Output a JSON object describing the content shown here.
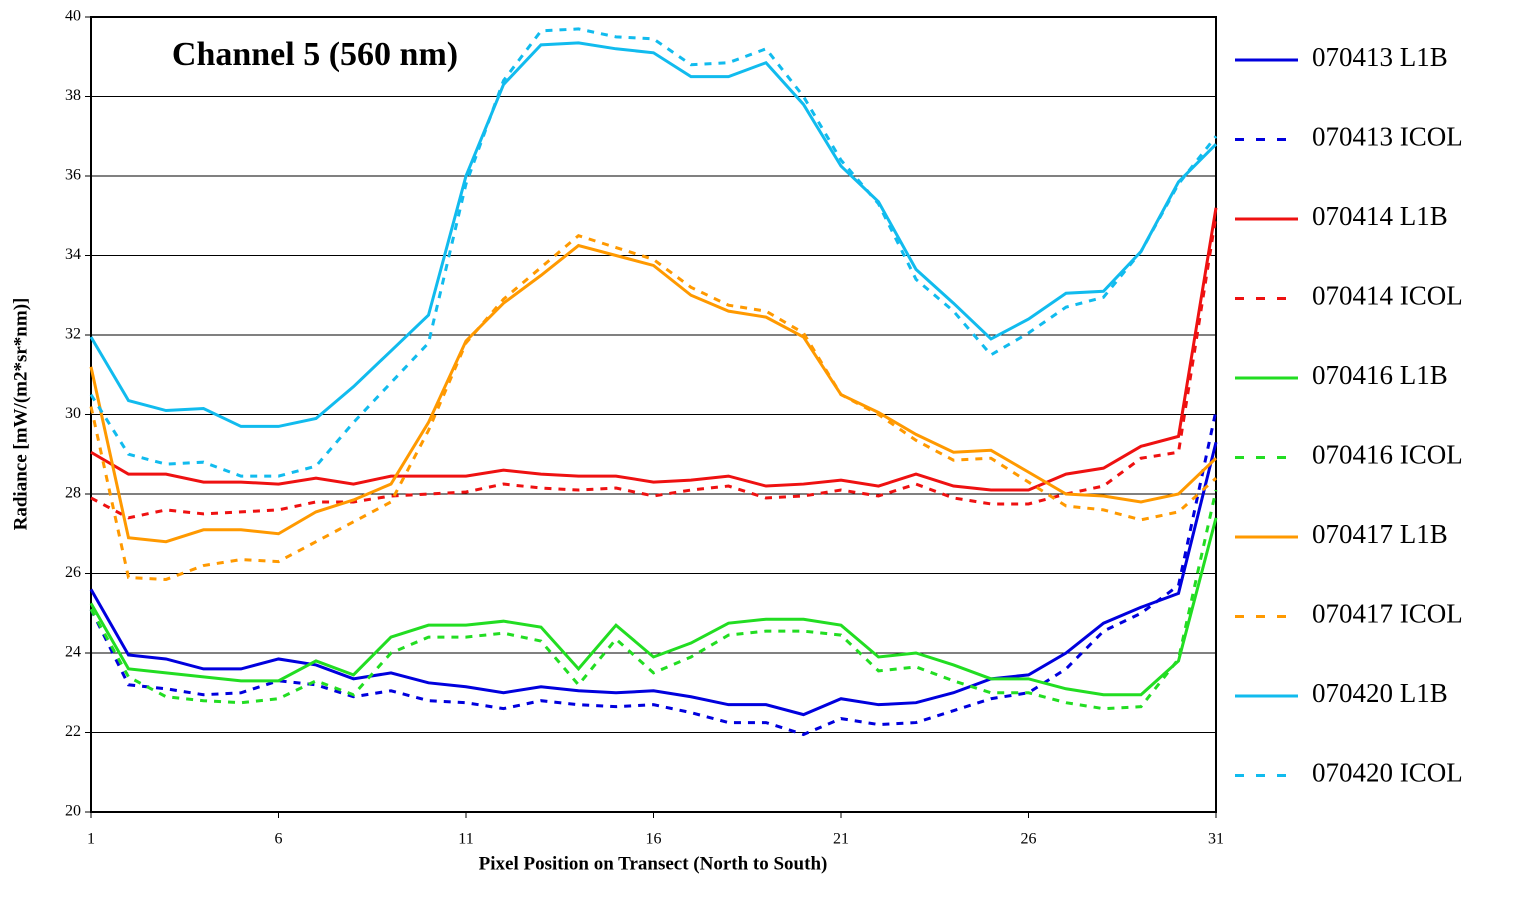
{
  "chart_data": {
    "type": "line",
    "title": "Channel 5 (560 nm)",
    "x_label": "Pixel Position on Transect (North to South)",
    "y_label": "Radiance [mW/(m2*sr*nm)]",
    "x": [
      1,
      2,
      3,
      4,
      5,
      6,
      7,
      8,
      9,
      10,
      11,
      12,
      13,
      14,
      15,
      16,
      17,
      18,
      19,
      20,
      21,
      22,
      23,
      24,
      25,
      26,
      27,
      28,
      29,
      30,
      31
    ],
    "xlim": [
      1,
      31
    ],
    "xticks": [
      1,
      6,
      11,
      16,
      21,
      26,
      31
    ],
    "ylim": [
      20,
      40
    ],
    "yticks": [
      20,
      22,
      24,
      26,
      28,
      30,
      32,
      34,
      36,
      38,
      40
    ],
    "grid": true,
    "legend": "right",
    "series": [
      {
        "name": "070413 L1B",
        "color": "#0000dd",
        "style": "solid",
        "values": [
          25.6,
          23.95,
          23.85,
          23.6,
          23.6,
          23.85,
          23.7,
          23.35,
          23.5,
          23.25,
          23.15,
          23.0,
          23.15,
          23.05,
          23.0,
          23.05,
          22.9,
          22.7,
          22.7,
          22.45,
          22.85,
          22.7,
          22.75,
          23.0,
          23.35,
          23.45,
          24.0,
          24.75,
          25.15,
          25.5,
          29.3
        ]
      },
      {
        "name": "070413 ICOL",
        "color": "#0000dd",
        "style": "dashed",
        "values": [
          25.1,
          23.2,
          23.1,
          22.95,
          23.0,
          23.3,
          23.2,
          22.9,
          23.05,
          22.8,
          22.75,
          22.6,
          22.8,
          22.7,
          22.65,
          22.7,
          22.5,
          22.25,
          22.25,
          21.95,
          22.35,
          22.2,
          22.25,
          22.55,
          22.85,
          23.0,
          23.6,
          24.55,
          25.0,
          25.7,
          30.1
        ]
      },
      {
        "name": "070414 L1B",
        "color": "#ee1111",
        "style": "solid",
        "values": [
          29.05,
          28.5,
          28.5,
          28.3,
          28.3,
          28.25,
          28.4,
          28.25,
          28.45,
          28.45,
          28.45,
          28.6,
          28.5,
          28.45,
          28.45,
          28.3,
          28.35,
          28.45,
          28.2,
          28.25,
          28.35,
          28.2,
          28.5,
          28.2,
          28.1,
          28.1,
          28.5,
          28.65,
          29.2,
          29.45,
          35.2
        ]
      },
      {
        "name": "070414 ICOL",
        "color": "#ee1111",
        "style": "dashed",
        "values": [
          27.9,
          27.4,
          27.6,
          27.5,
          27.55,
          27.6,
          27.8,
          27.8,
          27.95,
          28.0,
          28.05,
          28.25,
          28.15,
          28.1,
          28.15,
          27.95,
          28.1,
          28.2,
          27.9,
          27.95,
          28.1,
          27.95,
          28.25,
          27.9,
          27.75,
          27.75,
          28.0,
          28.2,
          28.9,
          29.05,
          35.0
        ]
      },
      {
        "name": "070416 L1B",
        "color": "#22dd22",
        "style": "solid",
        "values": [
          25.25,
          23.6,
          23.5,
          23.4,
          23.3,
          23.3,
          23.8,
          23.45,
          24.4,
          24.7,
          24.7,
          24.8,
          24.65,
          23.6,
          24.7,
          23.9,
          24.25,
          24.75,
          24.85,
          24.85,
          24.7,
          23.9,
          24.0,
          23.7,
          23.35,
          23.35,
          23.1,
          22.95,
          22.95,
          23.8,
          27.4
        ]
      },
      {
        "name": "070416 ICOL",
        "color": "#22dd22",
        "style": "dashed",
        "values": [
          25.1,
          23.4,
          22.9,
          22.8,
          22.75,
          22.85,
          23.3,
          22.95,
          24.0,
          24.4,
          24.4,
          24.5,
          24.3,
          23.2,
          24.35,
          23.5,
          23.9,
          24.45,
          24.55,
          24.55,
          24.45,
          23.55,
          23.65,
          23.3,
          23.0,
          23.0,
          22.75,
          22.6,
          22.65,
          23.85,
          28.1
        ]
      },
      {
        "name": "070417 L1B",
        "color": "#ff9900",
        "style": "solid",
        "values": [
          31.2,
          26.9,
          26.8,
          27.1,
          27.1,
          27.0,
          27.55,
          27.85,
          28.25,
          29.8,
          31.85,
          32.8,
          33.5,
          34.25,
          34.0,
          33.75,
          33.0,
          32.6,
          32.45,
          31.95,
          30.5,
          30.05,
          29.5,
          29.05,
          29.1,
          28.55,
          28.0,
          27.95,
          27.8,
          28.0,
          28.9
        ]
      },
      {
        "name": "070417 ICOL",
        "color": "#ff9900",
        "style": "dashed",
        "values": [
          30.2,
          25.9,
          25.85,
          26.2,
          26.35,
          26.3,
          26.8,
          27.3,
          27.8,
          29.6,
          31.8,
          32.9,
          33.7,
          34.5,
          34.2,
          33.9,
          33.2,
          32.75,
          32.6,
          32.05,
          30.5,
          30.0,
          29.35,
          28.85,
          28.9,
          28.3,
          27.7,
          27.6,
          27.35,
          27.55,
          28.4
        ]
      },
      {
        "name": "070420 L1B",
        "color": "#11bbee",
        "style": "solid",
        "values": [
          31.95,
          30.35,
          30.1,
          30.15,
          29.7,
          29.7,
          29.9,
          30.7,
          31.6,
          32.5,
          36.0,
          38.3,
          39.3,
          39.35,
          39.2,
          39.1,
          38.5,
          38.5,
          38.85,
          37.8,
          36.25,
          35.35,
          33.65,
          32.8,
          31.9,
          32.4,
          33.05,
          33.1,
          34.1,
          35.85,
          36.8
        ]
      },
      {
        "name": "070420 ICOL",
        "color": "#11bbee",
        "style": "dashed",
        "values": [
          30.5,
          29.0,
          28.75,
          28.8,
          28.45,
          28.45,
          28.7,
          29.8,
          30.8,
          31.8,
          35.8,
          38.4,
          39.65,
          39.7,
          39.5,
          39.45,
          38.8,
          38.85,
          39.2,
          38.0,
          36.4,
          35.3,
          33.4,
          32.6,
          31.5,
          32.05,
          32.7,
          32.95,
          34.1,
          35.8,
          37.0
        ]
      }
    ]
  }
}
